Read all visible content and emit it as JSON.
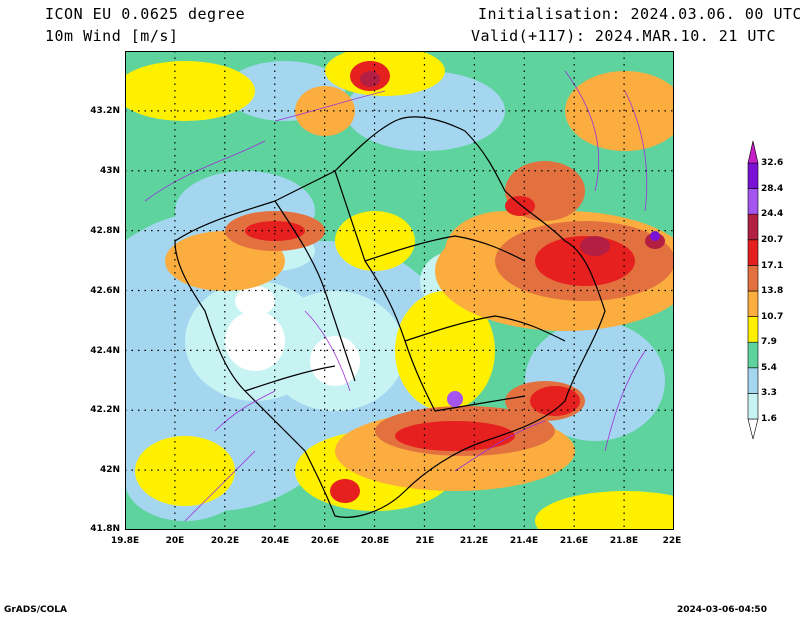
{
  "header": {
    "model": "ICON EU 0.0625 degree",
    "variable": "10m Wind [m/s]",
    "init": "Initialisation: 2024.03.06. 00 UTC",
    "valid": "Valid(+117): 2024.MAR.10. 21 UTC"
  },
  "axes": {
    "lat_labels": [
      "43.2N",
      "43N",
      "42.8N",
      "42.6N",
      "42.4N",
      "42.2N",
      "42N",
      "41.8N"
    ],
    "lon_labels": [
      "19.8E",
      "20E",
      "20.2E",
      "20.4E",
      "20.6E",
      "20.8E",
      "21E",
      "21.2E",
      "21.4E",
      "21.6E",
      "21.8E",
      "22E"
    ],
    "lat_range": [
      41.8,
      43.4
    ],
    "lon_range": [
      19.8,
      22.0
    ]
  },
  "colorbar": {
    "levels": [
      "1.6",
      "3.3",
      "5.4",
      "7.9",
      "10.7",
      "13.8",
      "17.1",
      "20.7",
      "24.4",
      "28.4",
      "32.6"
    ],
    "colors": [
      "#ffffff",
      "#c8f3f3",
      "#a5d6f0",
      "#5ed39e",
      "#fff000",
      "#fbad3f",
      "#e2713f",
      "#e61f1f",
      "#b31e43",
      "#a455f0",
      "#7a12d6",
      "#c61fc8"
    ]
  },
  "footer": {
    "left": "GrADS/COLA",
    "right": "2024-03-06-04:50"
  }
}
